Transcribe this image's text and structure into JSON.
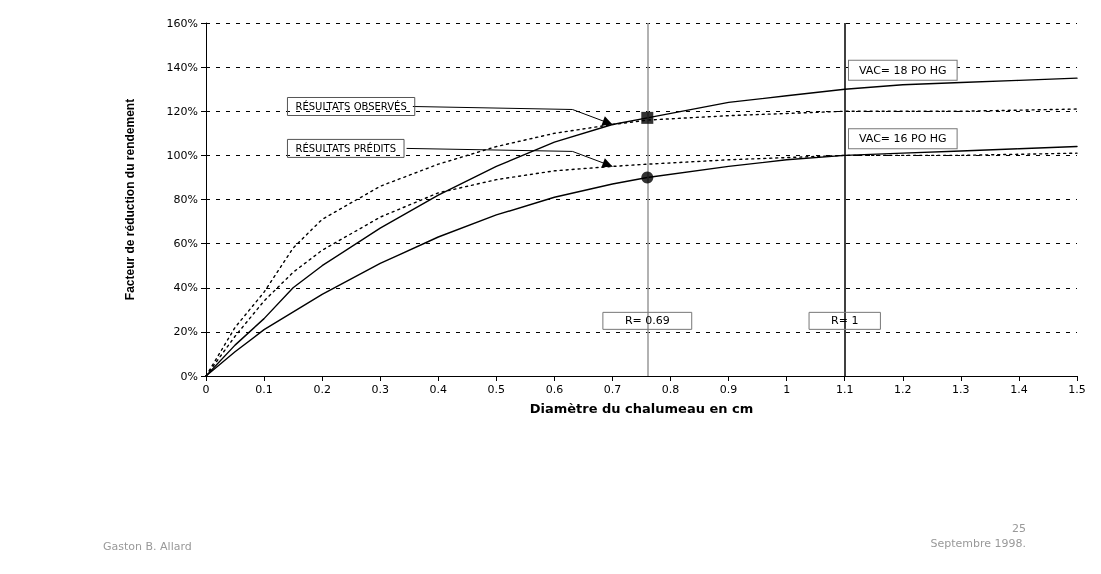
{
  "chart_data": {
    "type": "line",
    "xlabel": "Diamètre du chalumeau en cm",
    "ylabel": "Facteur de réduction du rendement",
    "xlim": [
      0,
      1.5
    ],
    "xticks": [
      0,
      0.1,
      0.2,
      0.3,
      0.4,
      0.5,
      0.6,
      0.7,
      0.8,
      0.9,
      1,
      1.1,
      1.2,
      1.3,
      1.4,
      1.5
    ],
    "ylim": [
      0,
      160
    ],
    "yticks": [
      {
        "value": 0,
        "label": "0%"
      },
      {
        "value": 20,
        "label": "20%"
      },
      {
        "value": 40,
        "label": "40%"
      },
      {
        "value": 60,
        "label": "60%"
      },
      {
        "value": 80,
        "label": "80%"
      },
      {
        "value": 100,
        "label": "100%"
      },
      {
        "value": 120,
        "label": "120%"
      },
      {
        "value": 140,
        "label": "140%"
      },
      {
        "value": 160,
        "label": "160%"
      }
    ],
    "grid": "y",
    "marker": "none",
    "series": [
      {
        "name": "VAC= 18 PO HG",
        "color": "#000000",
        "line_style": "solid",
        "x": [
          0,
          0.05,
          0.1,
          0.15,
          0.2,
          0.3,
          0.4,
          0.5,
          0.6,
          0.7,
          0.76,
          0.9,
          1.0,
          1.1,
          1.2,
          1.3,
          1.4,
          1.5
        ],
        "values": [
          0,
          14,
          26,
          40,
          50,
          67,
          82,
          95,
          106,
          114,
          117,
          124,
          127,
          130,
          132,
          133,
          134,
          135
        ]
      },
      {
        "name": "VAC= 16 PO HG",
        "color": "#000000",
        "line_style": "solid",
        "x": [
          0,
          0.05,
          0.1,
          0.2,
          0.3,
          0.4,
          0.5,
          0.6,
          0.7,
          0.76,
          0.9,
          1.0,
          1.1,
          1.2,
          1.3,
          1.4,
          1.5
        ],
        "values": [
          0,
          11,
          21,
          37,
          51,
          63,
          73,
          81,
          87,
          90,
          95,
          98,
          100,
          101,
          102,
          103,
          104
        ]
      },
      {
        "color": "#000000",
        "line_style": "dotted",
        "x": [
          0,
          0.05,
          0.1,
          0.15,
          0.2,
          0.3,
          0.4,
          0.5,
          0.6,
          0.7,
          0.76,
          0.9,
          1.0,
          1.1,
          1.3,
          1.5
        ],
        "values": [
          0,
          22,
          38,
          58,
          71,
          86,
          96,
          104,
          110,
          114,
          116,
          118,
          119,
          120,
          120,
          121
        ]
      },
      {
        "color": "#000000",
        "line_style": "dotted",
        "x": [
          0,
          0.05,
          0.1,
          0.15,
          0.2,
          0.3,
          0.4,
          0.5,
          0.6,
          0.7,
          0.76,
          0.9,
          1.0,
          1.1,
          1.3,
          1.5
        ],
        "values": [
          0,
          18,
          34,
          47,
          57,
          72,
          83,
          89,
          93,
          95,
          96,
          98,
          99,
          100,
          100,
          101
        ]
      },
      {
        "type": "scatter",
        "marker": "square",
        "color": "#000000",
        "x": [
          0.76
        ],
        "values": [
          117
        ]
      },
      {
        "type": "scatter",
        "marker": "circle",
        "color": "#000000",
        "x": [
          0.76
        ],
        "values": [
          90
        ]
      }
    ],
    "ref_lines": [
      {
        "axis": "x",
        "value": 0.76,
        "color": "#999999"
      },
      {
        "axis": "x",
        "value": 1.1,
        "color": "#000000"
      }
    ],
    "annotations": [
      {
        "text": "RÉSULTATS OBSERVÉS",
        "x": 0.7,
        "y": 114
      },
      {
        "text": "RÉSULTATS PRÉDITS",
        "x": 0.7,
        "y": 95
      },
      {
        "text": "R= 0.69",
        "x": 0.76,
        "y": 25
      },
      {
        "text": "R= 1",
        "x": 1.1,
        "y": 25
      },
      "Gaston B. Allard",
      "25",
      "Septembre 1998."
    ]
  }
}
